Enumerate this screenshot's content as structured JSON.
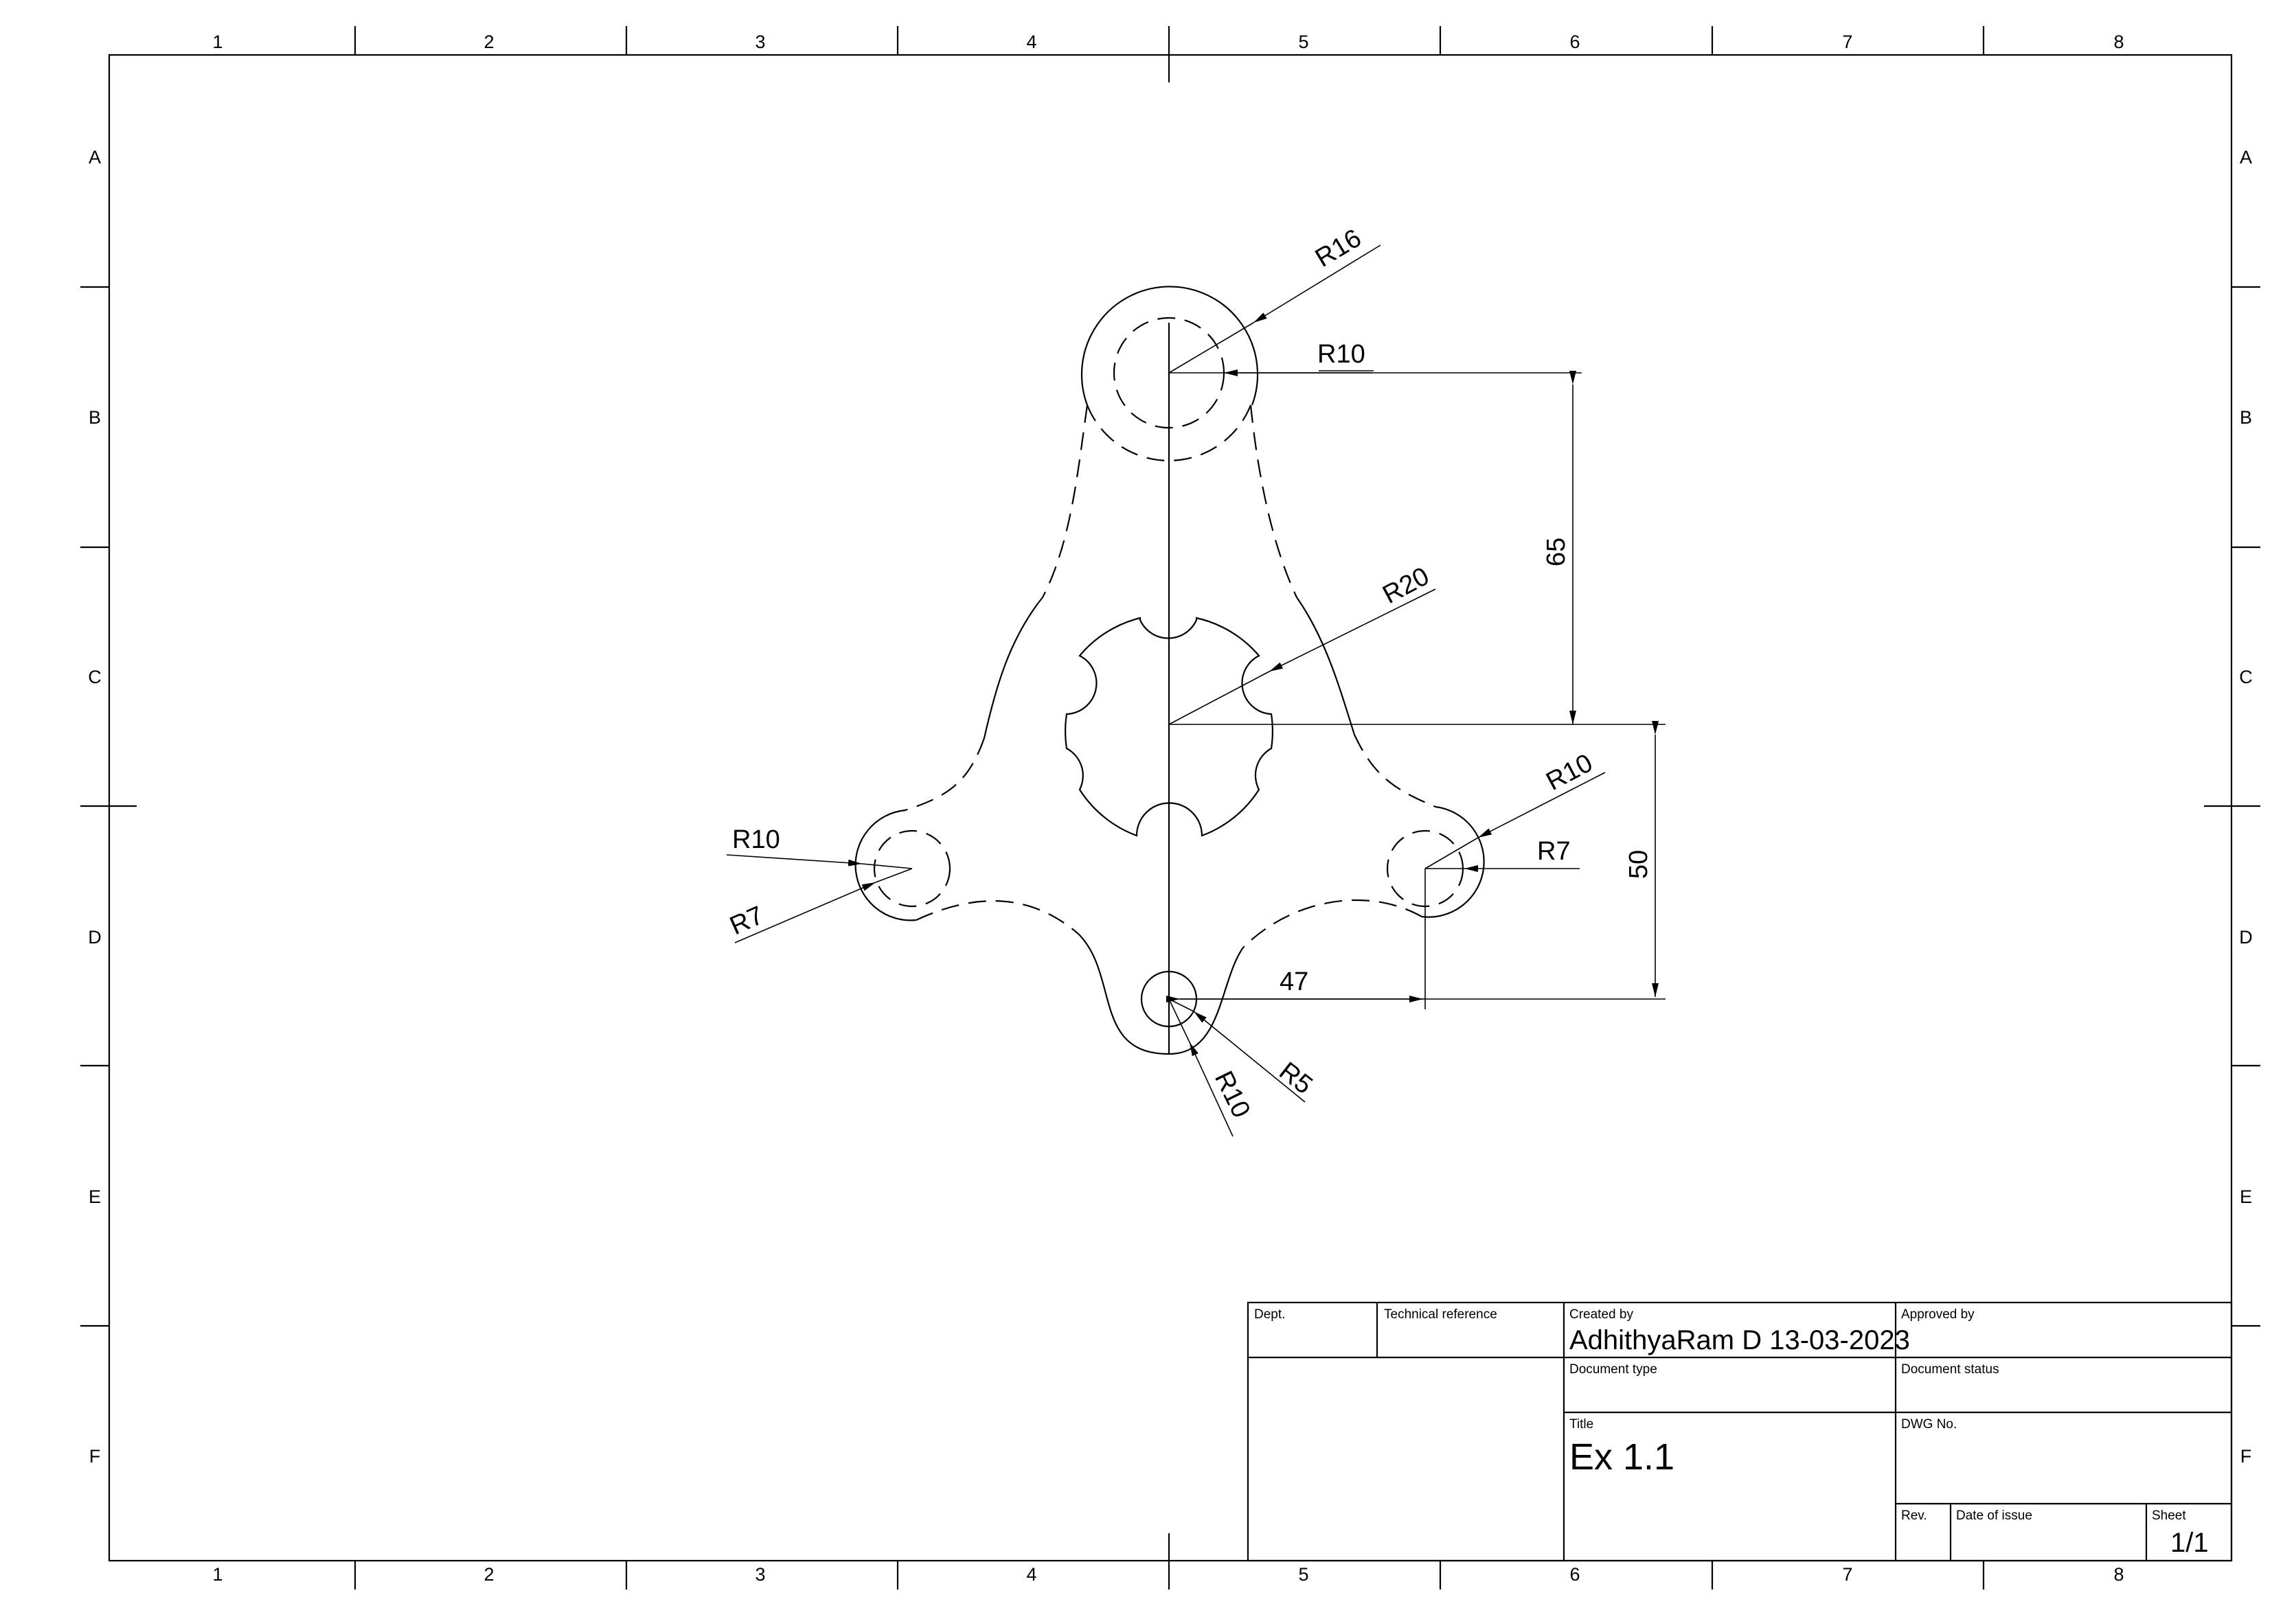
{
  "border": {
    "columns": [
      "1",
      "2",
      "3",
      "4",
      "5",
      "6",
      "7",
      "8"
    ],
    "rows": [
      "A",
      "B",
      "C",
      "D",
      "E",
      "F"
    ]
  },
  "dimensions": {
    "r16": "R16",
    "r10_top": "R10",
    "r20": "R20",
    "h65": "65",
    "h50": "50",
    "r10_right": "R10",
    "r7_right": "R7",
    "r10_left": "R10",
    "r7_left": "R7",
    "h47": "47",
    "r5": "R5",
    "r10_bottom": "R10"
  },
  "title_block": {
    "dept_label": "Dept.",
    "tech_ref_label": "Technical reference",
    "created_by_label": "Created by",
    "created_by_value": "AdhithyaRam D 13-03-2023",
    "approved_by_label": "Approved by",
    "document_type_label": "Document type",
    "document_status_label": "Document status",
    "title_label": "Title",
    "title_value": "Ex 1.1",
    "dwg_no_label": "DWG No.",
    "rev_label": "Rev.",
    "date_of_issue_label": "Date of issue",
    "sheet_label": "Sheet",
    "sheet_value": "1/1"
  }
}
